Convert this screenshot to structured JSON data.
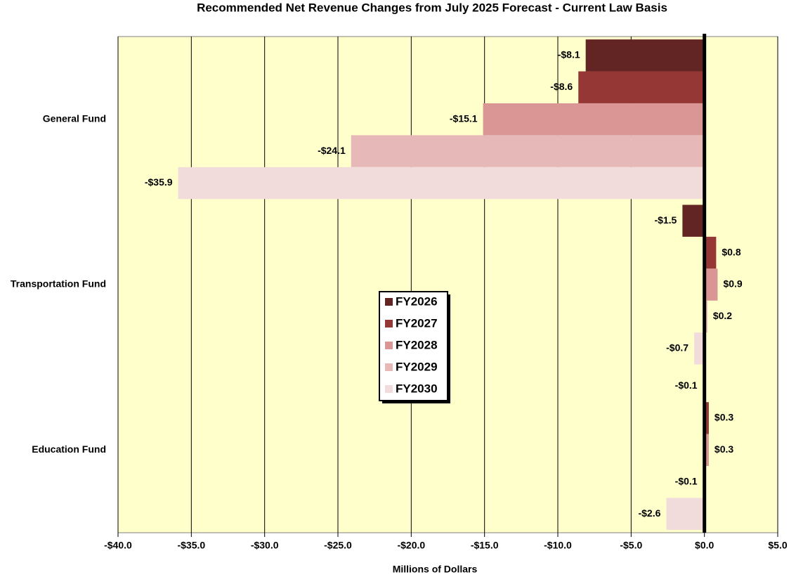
{
  "chart_data": {
    "type": "hbar",
    "title": "Recommended Net Revenue Changes from July 2025 Forecast - Current Law Basis",
    "x_label": "Millions of Dollars",
    "categories": [
      "General Fund",
      "Transportation Fund",
      "Education Fund"
    ],
    "series": [
      {
        "name": "FY2026",
        "color": "#632523",
        "values": [
          -8.1,
          -1.5,
          -0.1
        ],
        "value_labels": [
          "-$8.1",
          "-$1.5",
          "-$0.1"
        ]
      },
      {
        "name": "FY2027",
        "color": "#953735",
        "values": [
          -8.6,
          0.8,
          0.3
        ],
        "value_labels": [
          "-$8.6",
          "$0.8",
          "$0.3"
        ]
      },
      {
        "name": "FY2028",
        "color": "#d99694",
        "values": [
          -15.1,
          0.9,
          0.3
        ],
        "value_labels": [
          "-$15.1",
          "$0.9",
          "$0.3"
        ]
      },
      {
        "name": "FY2029",
        "color": "#e6b9b8",
        "values": [
          -24.1,
          0.2,
          -0.1
        ],
        "value_labels": [
          "-$24.1",
          "$0.2",
          "-$0.1"
        ]
      },
      {
        "name": "FY2030",
        "color": "#f2dcdb",
        "values": [
          -35.9,
          -0.7,
          -2.6
        ],
        "value_labels": [
          "-$35.9",
          "-$0.7",
          "-$2.6"
        ]
      }
    ],
    "xlim": [
      -40,
      5
    ],
    "xticks": [
      {
        "value": -40,
        "label": "-$40.0"
      },
      {
        "value": -35,
        "label": "-$35.0"
      },
      {
        "value": -30,
        "label": "-$30.0"
      },
      {
        "value": -25,
        "label": "-$25.0"
      },
      {
        "value": -20,
        "label": "-$20.0"
      },
      {
        "value": -15,
        "label": "-$15.0"
      },
      {
        "value": -10,
        "label": "-$10.0"
      },
      {
        "value": -5,
        "label": "-$5.0"
      },
      {
        "value": 0,
        "label": "$0.0"
      },
      {
        "value": 5,
        "label": "$5.0"
      }
    ],
    "grid": true
  }
}
